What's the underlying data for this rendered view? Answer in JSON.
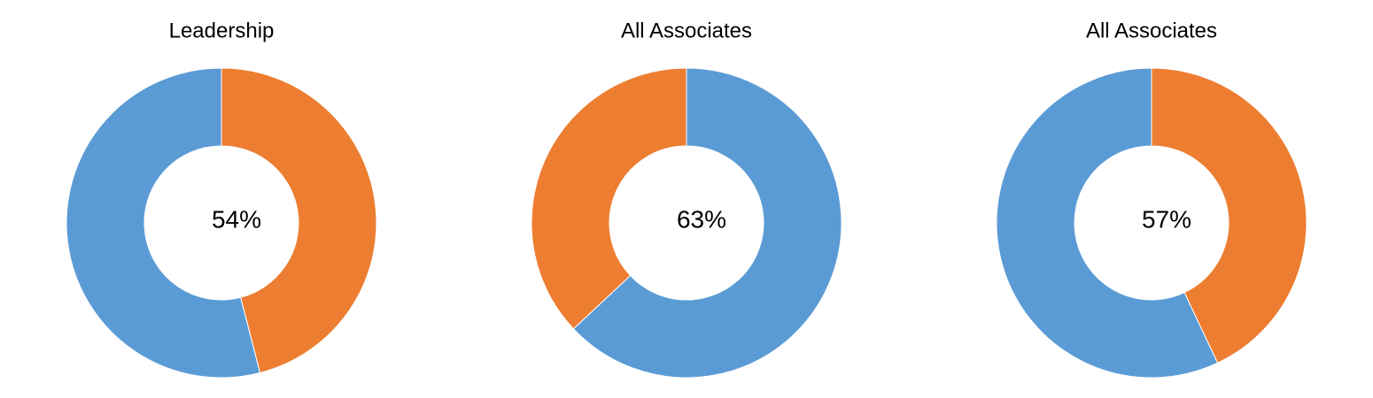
{
  "chart_data": [
    {
      "type": "donut",
      "title": "Leadership",
      "values": [
        46,
        54
      ],
      "colors": [
        "#ed7d31",
        "#5b9bd5"
      ],
      "center_label": "54%"
    },
    {
      "type": "donut",
      "title": "All Associates",
      "values": [
        63,
        37
      ],
      "colors": [
        "#5b9bd5",
        "#ed7d31"
      ],
      "center_label": "63%"
    },
    {
      "type": "donut",
      "title": "All Associates",
      "values": [
        43,
        57
      ],
      "colors": [
        "#ed7d31",
        "#5b9bd5"
      ],
      "center_label": "57%"
    }
  ]
}
